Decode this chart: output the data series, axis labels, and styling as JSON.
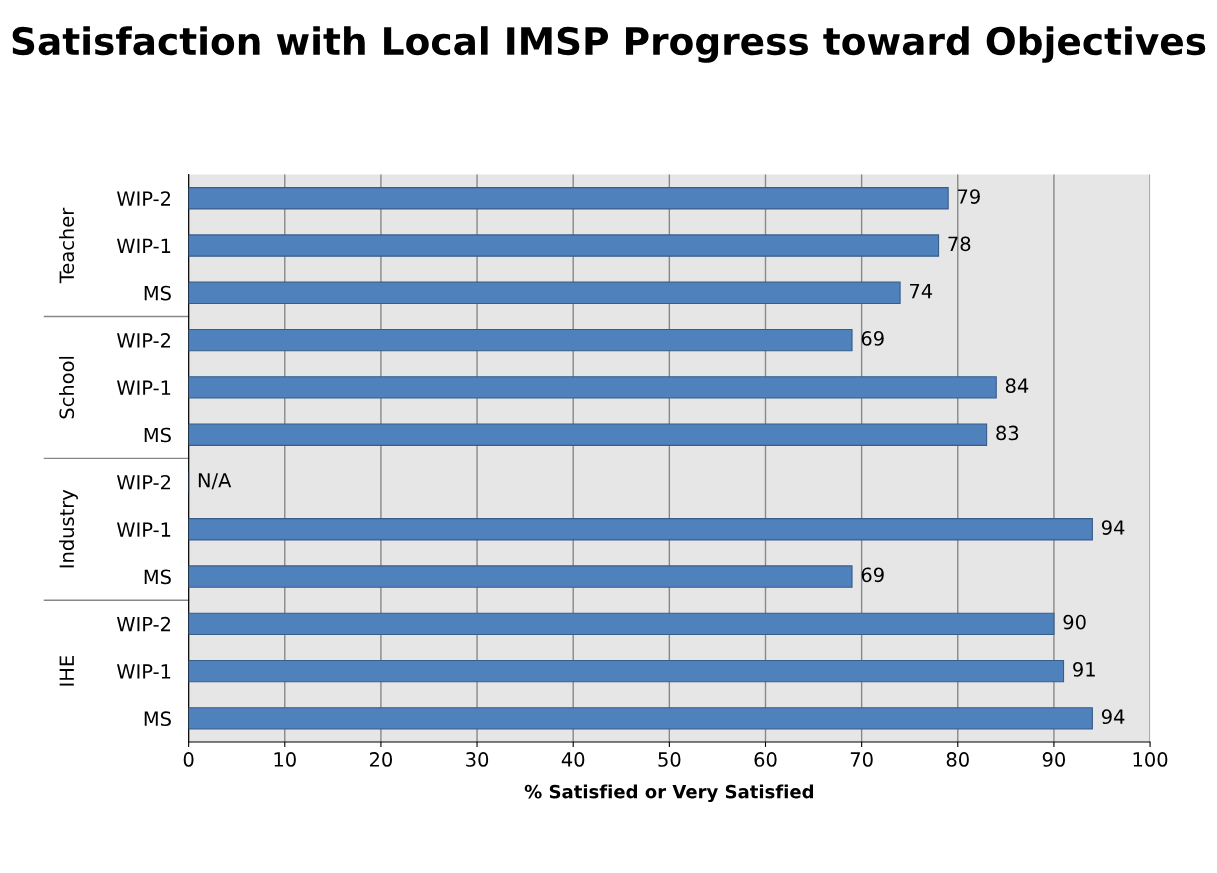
{
  "chart_data": {
    "type": "bar",
    "orientation": "horizontal",
    "title": "Satisfaction with Local IMSP Progress toward Objectives",
    "xlabel": "% Satisfied or Very Satisfied",
    "categories": [
      "WIP-2",
      "WIP-1",
      "MS",
      "WIP-2",
      "WIP-1",
      "MS",
      "WIP-2",
      "WIP-1",
      "MS",
      "WIP-2",
      "WIP-1",
      "MS"
    ],
    "values": [
      79,
      78,
      74,
      69,
      84,
      83,
      null,
      94,
      69,
      90,
      91,
      94
    ],
    "value_labels": [
      "79",
      "78",
      "74",
      "69",
      "84",
      "83",
      "N/A",
      "94",
      "69",
      "90",
      "91",
      "94"
    ],
    "color": "#4f81bd",
    "annotations": [
      "Teacher",
      "School",
      "Industry",
      "IHE"
    ],
    "xlim": [
      0,
      100
    ],
    "xticks": [
      0,
      10,
      20,
      30,
      40,
      50,
      60,
      70,
      80,
      90,
      100
    ],
    "grid": "x"
  }
}
